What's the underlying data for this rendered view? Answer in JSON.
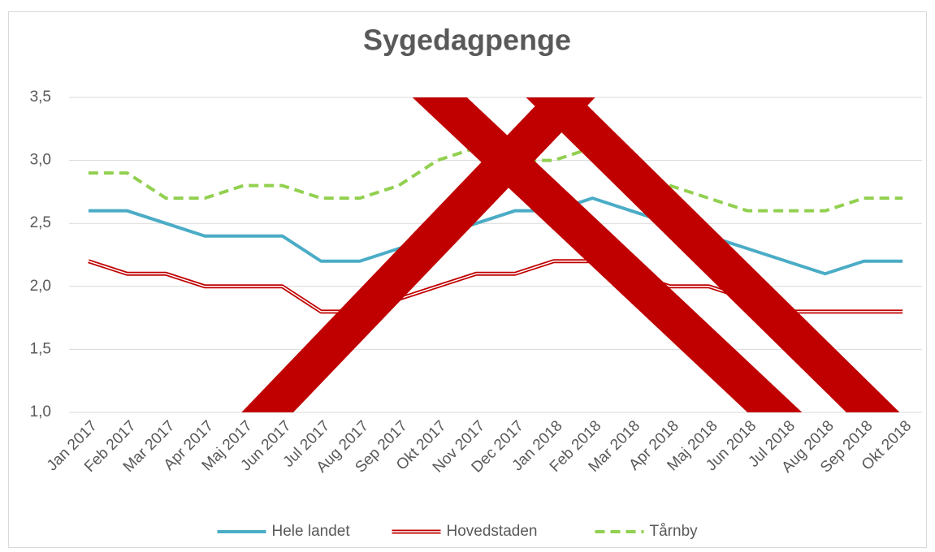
{
  "chart_data": {
    "type": "line",
    "title": "Sygedagpenge",
    "categories": [
      "Jan 2017",
      "Feb 2017",
      "Mar 2017",
      "Apr 2017",
      "Maj 2017",
      "Jun 2017",
      "Jul 2017",
      "Aug 2017",
      "Sep 2017",
      "Okt 2017",
      "Nov 2017",
      "Dec 2017",
      "Jan 2018",
      "Feb 2018",
      "Mar 2018",
      "Apr 2018",
      "Maj 2018",
      "Jun 2018",
      "Jul 2018",
      "Aug 2018",
      "Sep 2018",
      "Okt 2018"
    ],
    "series": [
      {
        "name": "Hele landet",
        "color": "#4bacc6",
        "style": "solid",
        "values": [
          2.6,
          2.6,
          2.5,
          2.4,
          2.4,
          2.4,
          2.2,
          2.2,
          2.3,
          2.4,
          2.5,
          2.6,
          2.6,
          2.7,
          2.6,
          2.5,
          2.4,
          2.3,
          2.2,
          2.1,
          2.2,
          2.2
        ]
      },
      {
        "name": "Hovedstaden",
        "color": "#c00000",
        "style": "double",
        "values": [
          2.2,
          2.1,
          2.1,
          2.0,
          2.0,
          2.0,
          1.8,
          1.8,
          1.9,
          2.0,
          2.1,
          2.1,
          2.2,
          2.2,
          2.1,
          2.0,
          2.0,
          1.9,
          1.8,
          1.8,
          1.8,
          1.8
        ]
      },
      {
        "name": "Tårnby",
        "color": "#92d050",
        "style": "dashed",
        "values": [
          2.9,
          2.9,
          2.7,
          2.7,
          2.8,
          2.8,
          2.7,
          2.7,
          2.8,
          3.0,
          3.1,
          3.0,
          3.0,
          3.1,
          2.9,
          2.8,
          2.7,
          2.6,
          2.6,
          2.6,
          2.7,
          2.7
        ]
      }
    ],
    "ylim": [
      1,
      3.5
    ],
    "yticks": [
      {
        "value": 1,
        "label": "1,0"
      },
      {
        "value": 1.5,
        "label": "1,5"
      },
      {
        "value": 2,
        "label": "2,0"
      },
      {
        "value": 2.5,
        "label": "2,5"
      },
      {
        "value": 3,
        "label": "3,0"
      },
      {
        "value": 3.5,
        "label": "3,5"
      }
    ],
    "grid": true,
    "legend": "bottom"
  }
}
